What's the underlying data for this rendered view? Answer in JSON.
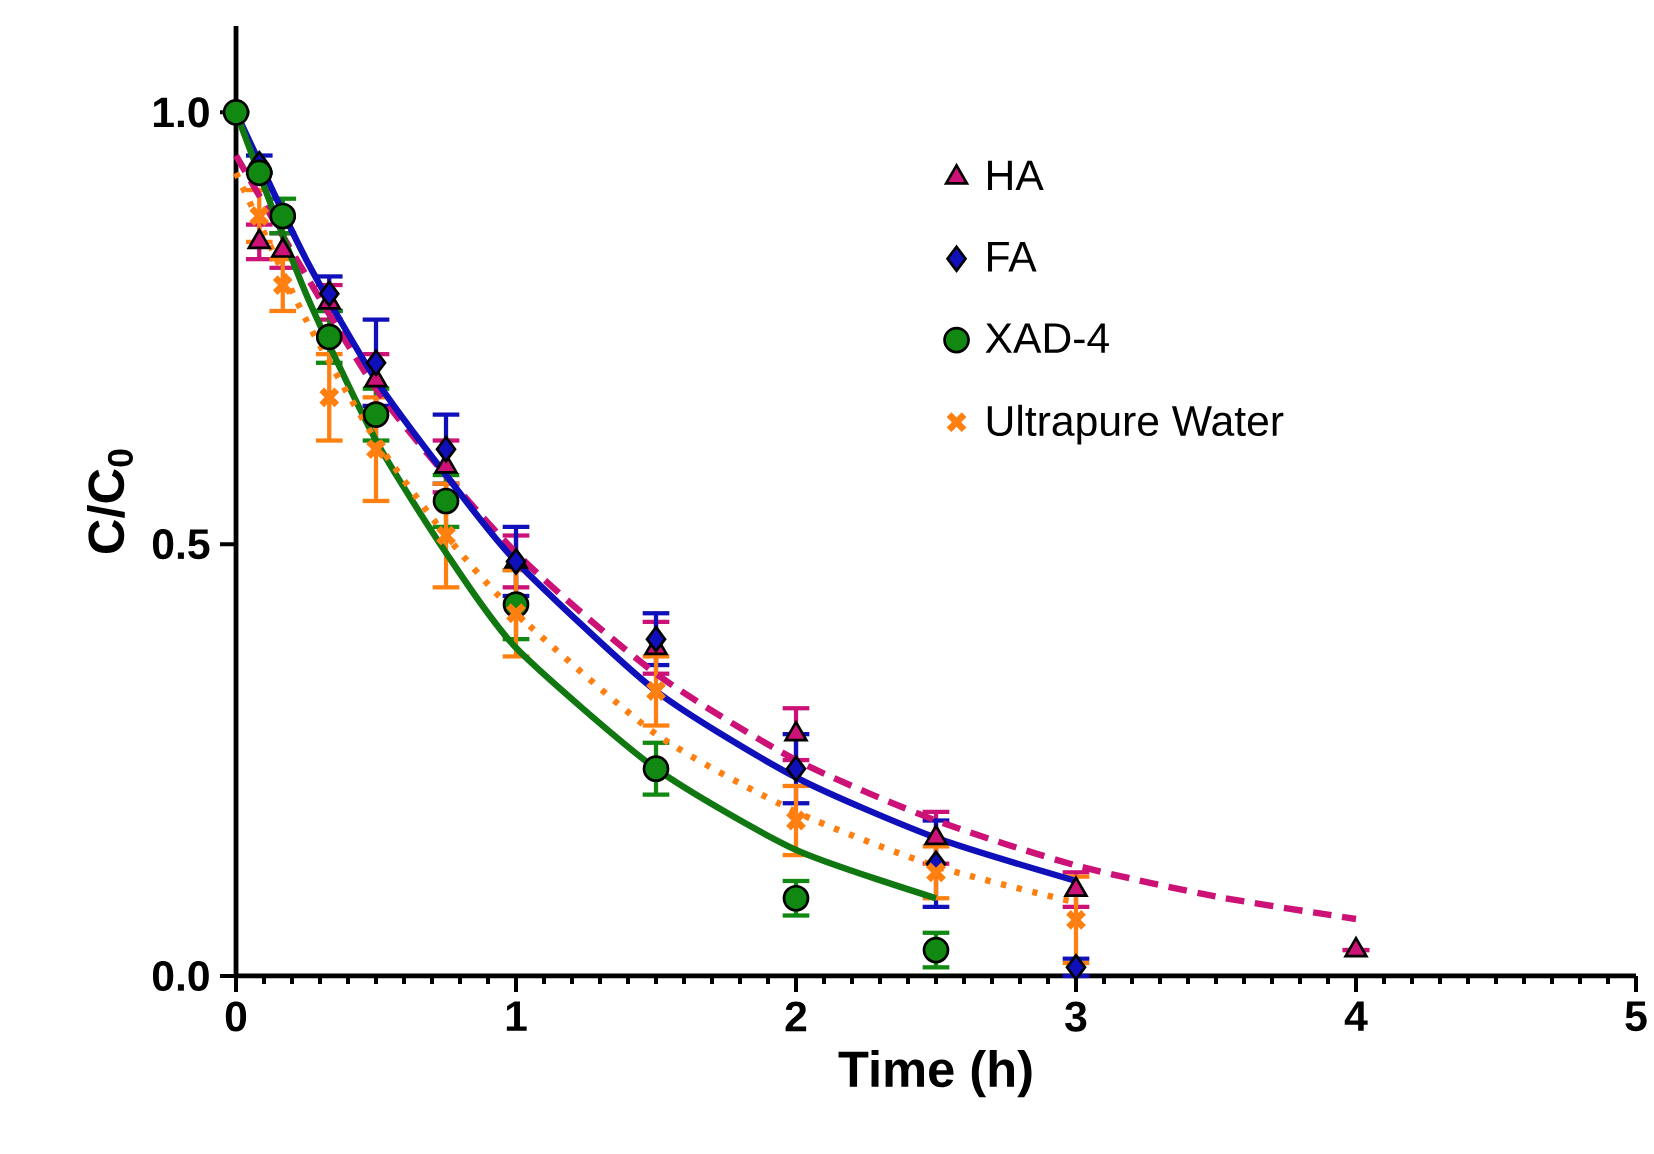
{
  "chart_data": {
    "type": "scatter",
    "xlabel": "Time (h)",
    "ylabel": "C/C$_{0}$",
    "xlim": [
      0,
      5
    ],
    "ylim": [
      0,
      1.1
    ],
    "xticks": [
      0,
      1,
      2,
      3,
      4,
      5
    ],
    "yticks": [
      {
        "value": 0,
        "label": "0.0"
      },
      {
        "value": 0.5,
        "label": "0.5"
      },
      {
        "value": 1,
        "label": "1.0"
      }
    ],
    "legend": "right",
    "grid": false,
    "series": [
      {
        "name": "HA",
        "type": "scatter",
        "marker": "triangle",
        "color": "#cc1177",
        "x": [
          0.083,
          0.167,
          0.333,
          0.5,
          0.75,
          1,
          1.5,
          2,
          2.5,
          3,
          4
        ],
        "values": [
          0.85,
          0.84,
          0.78,
          0.69,
          0.59,
          0.48,
          0.38,
          0.28,
          0.16,
          0.1,
          0.03
        ],
        "errors": [
          0.02,
          0.02,
          0.02,
          0.03,
          0.03,
          0.03,
          0.03,
          0.03,
          0.03,
          0.02,
          null
        ]
      },
      {
        "name": "FA",
        "type": "scatter",
        "marker": "diamond",
        "color": "#1010bb",
        "x": [
          0.083,
          0.333,
          0.5,
          0.75,
          1,
          1.5,
          2,
          2.5,
          3
        ],
        "values": [
          0.94,
          0.79,
          0.71,
          0.61,
          0.48,
          0.39,
          0.24,
          0.13,
          0.01
        ],
        "errors": [
          0.01,
          0.02,
          0.05,
          0.04,
          0.04,
          0.03,
          0.04,
          0.05,
          0.01
        ]
      },
      {
        "name": "XAD-4",
        "type": "scatter",
        "marker": "circle",
        "color": "#118811",
        "x": [
          0,
          0.083,
          0.167,
          0.333,
          0.5,
          0.75,
          1,
          1.5,
          2,
          2.5
        ],
        "values": [
          1.0,
          0.93,
          0.88,
          0.74,
          0.65,
          0.55,
          0.43,
          0.24,
          0.09,
          0.03
        ],
        "errors": [
          null,
          null,
          0.02,
          0.03,
          0.03,
          0.03,
          0.04,
          0.03,
          0.02,
          0.02
        ]
      },
      {
        "name": "Ultrapure Water",
        "type": "scatter",
        "marker": "cross",
        "color": "#ff8011",
        "x": [
          0.083,
          0.167,
          0.333,
          0.5,
          0.75,
          1,
          1.5,
          2,
          2.5,
          3
        ],
        "values": [
          0.88,
          0.8,
          0.67,
          0.61,
          0.51,
          0.42,
          0.33,
          0.18,
          0.12,
          0.065
        ],
        "errors": [
          0.03,
          0.03,
          0.05,
          0.06,
          0.06,
          0.05,
          0.04,
          0.04,
          0.03,
          0.05
        ]
      },
      {
        "type": "line",
        "line_style": "dashed",
        "color": "#cc1177",
        "x": [
          0,
          0.5,
          1,
          1.5,
          2,
          2.5,
          3,
          3.5,
          4
        ],
        "values": [
          0.95,
          0.68,
          0.49,
          0.35,
          0.25,
          0.18,
          0.128,
          0.092,
          0.066
        ]
      },
      {
        "type": "line",
        "line_style": "solid",
        "color": "#1010bb",
        "x": [
          0,
          0.25,
          0.5,
          0.75,
          1,
          1.5,
          2,
          2.5,
          3
        ],
        "values": [
          1.0,
          0.83,
          0.69,
          0.58,
          0.48,
          0.33,
          0.23,
          0.16,
          0.11
        ]
      },
      {
        "type": "line",
        "line_style": "solid",
        "color": "#117711",
        "x": [
          0,
          0.25,
          0.5,
          0.75,
          1,
          1.5,
          2,
          2.5
        ],
        "values": [
          1.0,
          0.79,
          0.62,
          0.49,
          0.38,
          0.24,
          0.146,
          0.09
        ]
      },
      {
        "type": "line",
        "line_style": "dotted",
        "color": "#ff8011",
        "x": [
          0,
          0.25,
          0.5,
          0.75,
          1,
          1.5,
          2,
          2.5,
          3
        ],
        "values": [
          0.93,
          0.76,
          0.62,
          0.51,
          0.42,
          0.28,
          0.19,
          0.127,
          0.085
        ]
      }
    ]
  }
}
